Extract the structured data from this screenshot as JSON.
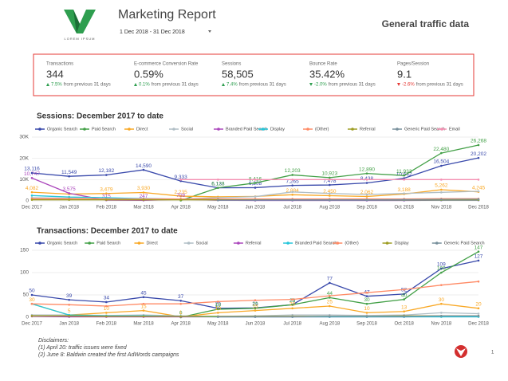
{
  "header": {
    "logo_text": "LOREM IPSUM",
    "title": "Marketing Report",
    "date_range": "1 Dec 2018 - 31 Dec 2018",
    "heading": "General traffic data"
  },
  "kpis": [
    {
      "label": "Transactions",
      "value": "344",
      "change": "7.5%",
      "note": "from previous 31 days",
      "trend": "up",
      "color": "#2e9e4f"
    },
    {
      "label": "E-commerce Conversion Rate",
      "value": "0.59%",
      "change": "0.1%",
      "note": "from previous 31 days",
      "trend": "up",
      "color": "#2e9e4f"
    },
    {
      "label": "Sessions",
      "value": "58,505",
      "change": "7.4%",
      "note": "from previous 31 days",
      "trend": "up",
      "color": "#2e9e4f"
    },
    {
      "label": "Bounce Rate",
      "value": "35.42%",
      "change": "-2.0%",
      "note": "from previous 31 days",
      "trend": "down",
      "color": "#2e9e4f"
    },
    {
      "label": "Pages/Session",
      "value": "9.1",
      "change": "-2.6%",
      "note": "from previous 31 days",
      "trend": "down",
      "color": "#e53935"
    }
  ],
  "chart_data": [
    {
      "type": "line",
      "title": "Sessions: December 2017 to date",
      "categories": [
        "Dec 2017",
        "Jan 2018",
        "Feb 2018",
        "Mar 2018",
        "Apr 2018",
        "May 2018",
        "Jun 2018",
        "Jul 2018",
        "Aug 2018",
        "Sep 2018",
        "Oct 2018",
        "Nov 2018",
        "Dec 2018"
      ],
      "ylim": [
        0,
        30000
      ],
      "yticks": [
        0,
        {
          "value": 10000,
          "label": "10K"
        },
        {
          "value": 20000,
          "label": "20K"
        },
        {
          "value": 30000,
          "label": "30K"
        }
      ],
      "grid": true,
      "series": [
        {
          "name": "Organic Search",
          "color": "#3949ab",
          "values": [
            13116,
            11549,
            12182,
            14590,
            9333,
            6133,
            6208,
            7265,
            7478,
            8438,
            10642,
            16504,
            20202
          ],
          "value_labels": [
            "13,116",
            "11,549",
            "12,182",
            "14,590",
            "9,333",
            "6,133",
            "6,208",
            "7,265",
            "7,478",
            "8,438",
            "10,642",
            "16,504",
            "20,202"
          ]
        },
        {
          "name": "Paid Search",
          "color": "#43a047",
          "values": [
            null,
            null,
            null,
            null,
            200,
            6128,
            8416,
            12203,
            10923,
            12890,
            11933,
            22480,
            26268
          ],
          "value_labels": [
            null,
            null,
            null,
            null,
            null,
            "6,128",
            "8,416",
            "12,203",
            "10,923",
            "12,890",
            "11,933",
            "22,480",
            "26,268"
          ]
        },
        {
          "name": "Direct",
          "color": "#f9a825",
          "values": [
            4082,
            3200,
            3479,
            3930,
            2235,
            1900,
            2100,
            2884,
            2450,
            2062,
            3188,
            5262,
            4245
          ],
          "value_labels": [
            "4,082",
            null,
            "3,479",
            "3,930",
            "2,235",
            null,
            null,
            "2,884",
            "2,450",
            "2,062",
            "3,188",
            "5,262",
            "4,245"
          ]
        },
        {
          "name": "Social",
          "color": "#b0bec5",
          "values": [
            1500,
            1200,
            1000,
            1100,
            900,
            1500,
            2000,
            4200,
            3500,
            3000,
            3500,
            4000,
            4500
          ]
        },
        {
          "name": "Branded Paid Search",
          "color": "#ab47bc",
          "values": [
            10747,
            3575,
            315,
            247,
            708,
            300,
            200,
            200,
            200,
            200,
            200,
            300,
            300
          ],
          "value_labels": [
            "10,747",
            "3,575",
            "315",
            "247",
            "708",
            null,
            null,
            null,
            null,
            null,
            null,
            null,
            null
          ]
        },
        {
          "name": "Display",
          "color": "#26c6da",
          "values": [
            2500,
            1800,
            1500,
            1000,
            800,
            500,
            400,
            400,
            400,
            400,
            400,
            400,
            400
          ]
        },
        {
          "name": "(Other)",
          "color": "#ff8a65",
          "values": [
            1000,
            1000,
            900,
            900,
            900,
            900,
            900,
            900,
            900,
            900,
            900,
            1000,
            1000
          ]
        },
        {
          "name": "Referral",
          "color": "#9e9d24",
          "values": [
            500,
            500,
            500,
            500,
            500,
            500,
            500,
            500,
            500,
            500,
            500,
            500,
            500
          ]
        },
        {
          "name": "Generic Paid Search",
          "color": "#78909c",
          "values": [
            null,
            null,
            null,
            null,
            null,
            300,
            400,
            500,
            500,
            500,
            600,
            700,
            800
          ]
        },
        {
          "name": "Email",
          "color": "#f48fb1",
          "values": [
            null,
            null,
            null,
            null,
            10000,
            10000,
            10000,
            10000,
            10000,
            10000,
            10000,
            10000,
            10000
          ]
        }
      ]
    },
    {
      "type": "line",
      "title": "Transactions: December 2017 to date",
      "categories": [
        "Dec 2017",
        "Jan 2018",
        "Feb 2018",
        "Mar 2018",
        "Apr 2018",
        "May 2018",
        "Jun 2018",
        "Jul 2018",
        "Aug 2018",
        "Sep 2018",
        "Oct 2018",
        "Nov 2018",
        "Dec 2018"
      ],
      "ylim": [
        0,
        150
      ],
      "yticks": [
        0,
        50,
        100,
        150
      ],
      "grid": true,
      "series": [
        {
          "name": "Organic Search",
          "color": "#3949ab",
          "labels": true,
          "values": [
            50,
            39,
            34,
            45,
            37,
            20,
            21,
            28,
            77,
            47,
            52,
            109,
            127
          ]
        },
        {
          "name": "Paid Search",
          "color": "#43a047",
          "labels": true,
          "values": [
            null,
            null,
            null,
            null,
            0,
            18,
            20,
            28,
            44,
            30,
            40,
            100,
            147
          ]
        },
        {
          "name": "Direct",
          "color": "#f9a825",
          "labels": true,
          "values": [
            30,
            5,
            10,
            15,
            1,
            10,
            15,
            20,
            25,
            10,
            13,
            30,
            20
          ]
        },
        {
          "name": "Social",
          "color": "#b0bec5",
          "values": [
            5,
            5,
            4,
            5,
            3,
            2,
            3,
            5,
            5,
            4,
            5,
            10,
            8
          ]
        },
        {
          "name": "Referral",
          "color": "#ab47bc",
          "values": [
            2,
            1,
            1,
            1,
            1,
            1,
            1,
            1,
            1,
            1,
            1,
            2,
            2
          ]
        },
        {
          "name": "Branded Paid Search",
          "color": "#26c6da",
          "values": [
            30,
            5,
            3,
            3,
            2,
            1,
            1,
            1,
            1,
            1,
            1,
            1,
            1
          ]
        },
        {
          "name": "(Other)",
          "color": "#ff8a65",
          "values": [
            30,
            28,
            25,
            30,
            30,
            35,
            38,
            40,
            48,
            55,
            62,
            72,
            80
          ]
        },
        {
          "name": "Display",
          "color": "#9e9d24",
          "values": [
            3,
            3,
            2,
            2,
            2,
            2,
            2,
            2,
            2,
            2,
            3,
            3,
            3
          ]
        },
        {
          "name": "Generic Paid Search",
          "color": "#78909c",
          "values": [
            null,
            null,
            null,
            null,
            null,
            1,
            1,
            1,
            2,
            2,
            2,
            3,
            3
          ]
        }
      ]
    }
  ],
  "disclaimers": {
    "heading": "Disclaimers:",
    "items": [
      "(1) April 20: traffic issues were fixed",
      "(2) June 8: Baldwin created the first AdWords campaigns"
    ]
  },
  "footer": {
    "page": "1"
  }
}
